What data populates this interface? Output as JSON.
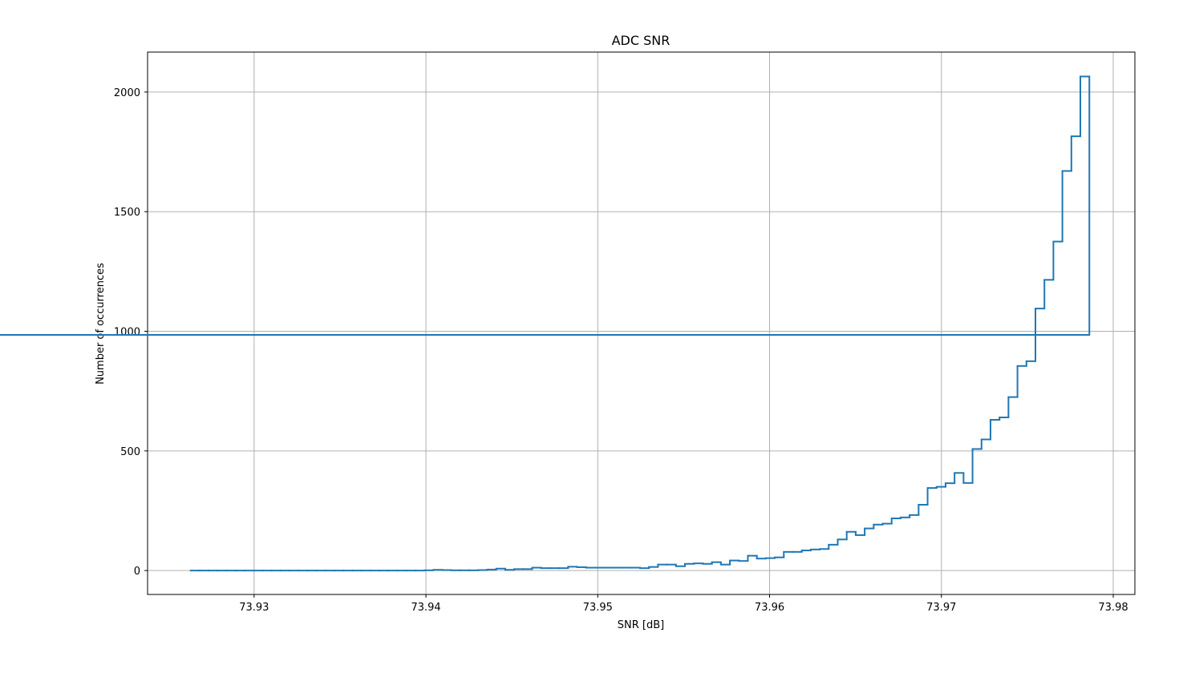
{
  "chart_data": {
    "type": "histogram",
    "title": "ADC SNR",
    "xlabel": "SNR [dB]",
    "ylabel": "Number of occurrences",
    "color": "#1f77b4",
    "grid": true,
    "bins": [
      73.92631,
      73.926833,
      73.927356,
      73.927879,
      73.928402,
      73.928925,
      73.929448,
      73.929971,
      73.930494,
      73.931017,
      73.93154,
      73.932063,
      73.932586,
      73.933109,
      73.933632,
      73.934155,
      73.934678,
      73.935201,
      73.935724,
      73.936247,
      73.93677,
      73.937293,
      73.937816,
      73.938339,
      73.938862,
      73.939385,
      73.939908,
      73.940431,
      73.940954,
      73.941477,
      73.942,
      73.942523,
      73.943046,
      73.943569,
      73.944092,
      73.944615,
      73.945138,
      73.945661,
      73.946184,
      73.946707,
      73.94723,
      73.947753,
      73.948276,
      73.948799,
      73.949322,
      73.949845,
      73.950368,
      73.950891,
      73.951414,
      73.951937,
      73.95246,
      73.952983,
      73.953506,
      73.954029,
      73.954552,
      73.955075,
      73.955598,
      73.956121,
      73.956644,
      73.957167,
      73.95769,
      73.958213,
      73.958736,
      73.959259,
      73.959782,
      73.960305,
      73.960828,
      73.961351,
      73.961874,
      73.962397,
      73.96292,
      73.963443,
      73.963966,
      73.964489,
      73.965012,
      73.965535,
      73.966058,
      73.966581,
      73.967104,
      73.967627,
      73.96815,
      73.968673,
      73.969196,
      73.969719,
      73.970242,
      73.970765,
      73.971288,
      73.971811,
      73.972334,
      73.972857,
      73.97338,
      73.973903,
      73.974426,
      73.974949,
      73.975472,
      73.975995,
      73.976518,
      73.977041,
      73.977564,
      73.978087,
      73.97861
    ],
    "values": [
      0,
      0,
      0,
      0,
      0,
      0,
      0,
      0,
      0,
      0,
      0,
      0,
      0,
      0,
      0,
      0,
      0,
      0,
      0,
      0,
      0,
      0,
      0,
      0,
      0,
      0,
      1,
      3,
      2,
      1,
      1,
      1,
      2,
      4,
      8,
      3,
      6,
      6,
      12,
      10,
      10,
      10,
      16,
      14,
      12,
      12,
      12,
      12,
      12,
      12,
      10,
      15,
      25,
      25,
      18,
      28,
      30,
      28,
      35,
      25,
      42,
      40,
      62,
      50,
      52,
      55,
      78,
      78,
      84,
      88,
      90,
      108,
      130,
      162,
      148,
      176,
      192,
      196,
      218,
      222,
      232,
      275,
      345,
      350,
      365,
      408,
      366,
      508,
      548,
      630,
      640,
      725,
      855,
      875,
      1095,
      1215,
      1375,
      1670,
      1815,
      2065,
      985
    ],
    "xlim": [
      73.9238,
      73.98126
    ],
    "ylim": [
      -100,
      2167
    ],
    "xticks": [
      73.93,
      73.94,
      73.95,
      73.96,
      73.97,
      73.98
    ],
    "yticks": [
      0,
      500,
      1000,
      1500,
      2000
    ]
  }
}
